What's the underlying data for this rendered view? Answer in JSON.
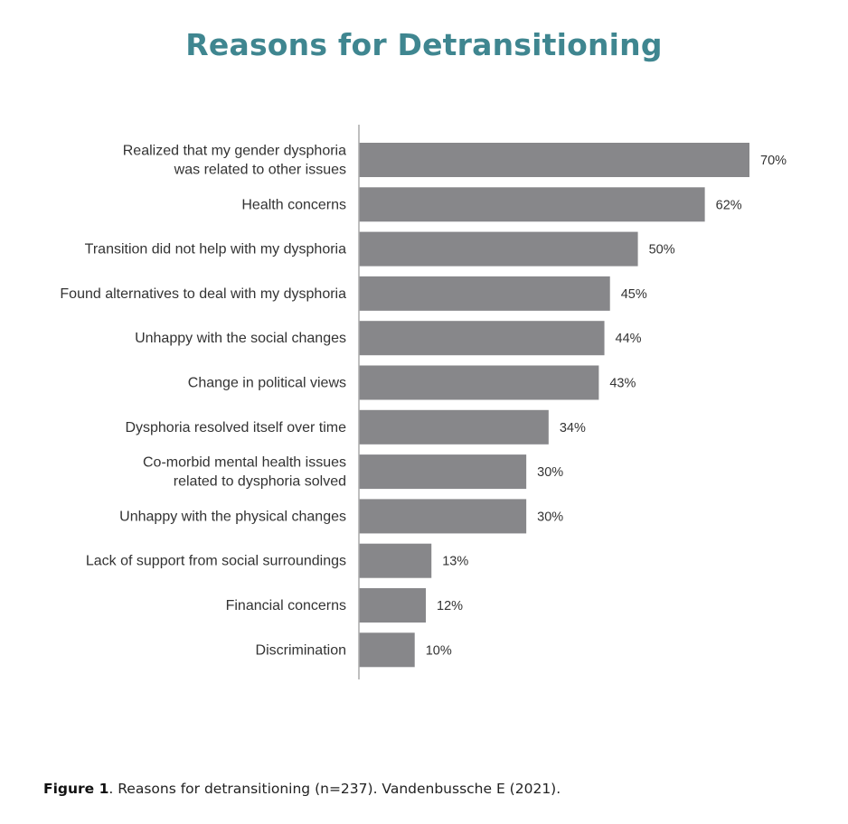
{
  "title": "Reasons for Detransitioning",
  "caption": {
    "figure_label": "Figure 1",
    "text": ". Reasons for detransitioning (n=237). Vandenbussche E (2021)."
  },
  "colors": {
    "title": "#3f8690",
    "bar": "#87878a",
    "axis": "#aaaaaa"
  },
  "chart_data": {
    "type": "bar",
    "orientation": "horizontal",
    "title": "Reasons for Detransitioning",
    "categories": [
      [
        "Realized that my gender dysphoria",
        "was related to other issues"
      ],
      [
        "Health concerns"
      ],
      [
        "Transition did not help with my dysphoria"
      ],
      [
        "Found alternatives to deal with my dysphoria"
      ],
      [
        "Unhappy with the social changes"
      ],
      [
        "Change in political views"
      ],
      [
        "Dysphoria resolved itself over time"
      ],
      [
        "Co-morbid mental health issues",
        "related to dysphoria solved"
      ],
      [
        "Unhappy with the physical changes"
      ],
      [
        "Lack of support from social surroundings"
      ],
      [
        "Financial concerns"
      ],
      [
        "Discrimination"
      ]
    ],
    "values": [
      70,
      62,
      50,
      45,
      44,
      43,
      34,
      30,
      30,
      13,
      12,
      10
    ],
    "value_labels": [
      "70%",
      "62%",
      "50%",
      "45%",
      "44%",
      "43%",
      "34%",
      "30%",
      "30%",
      "13%",
      "12%",
      "10%"
    ],
    "unit": "%",
    "xlim": [
      0,
      70
    ],
    "grid": false,
    "legend": "none"
  }
}
